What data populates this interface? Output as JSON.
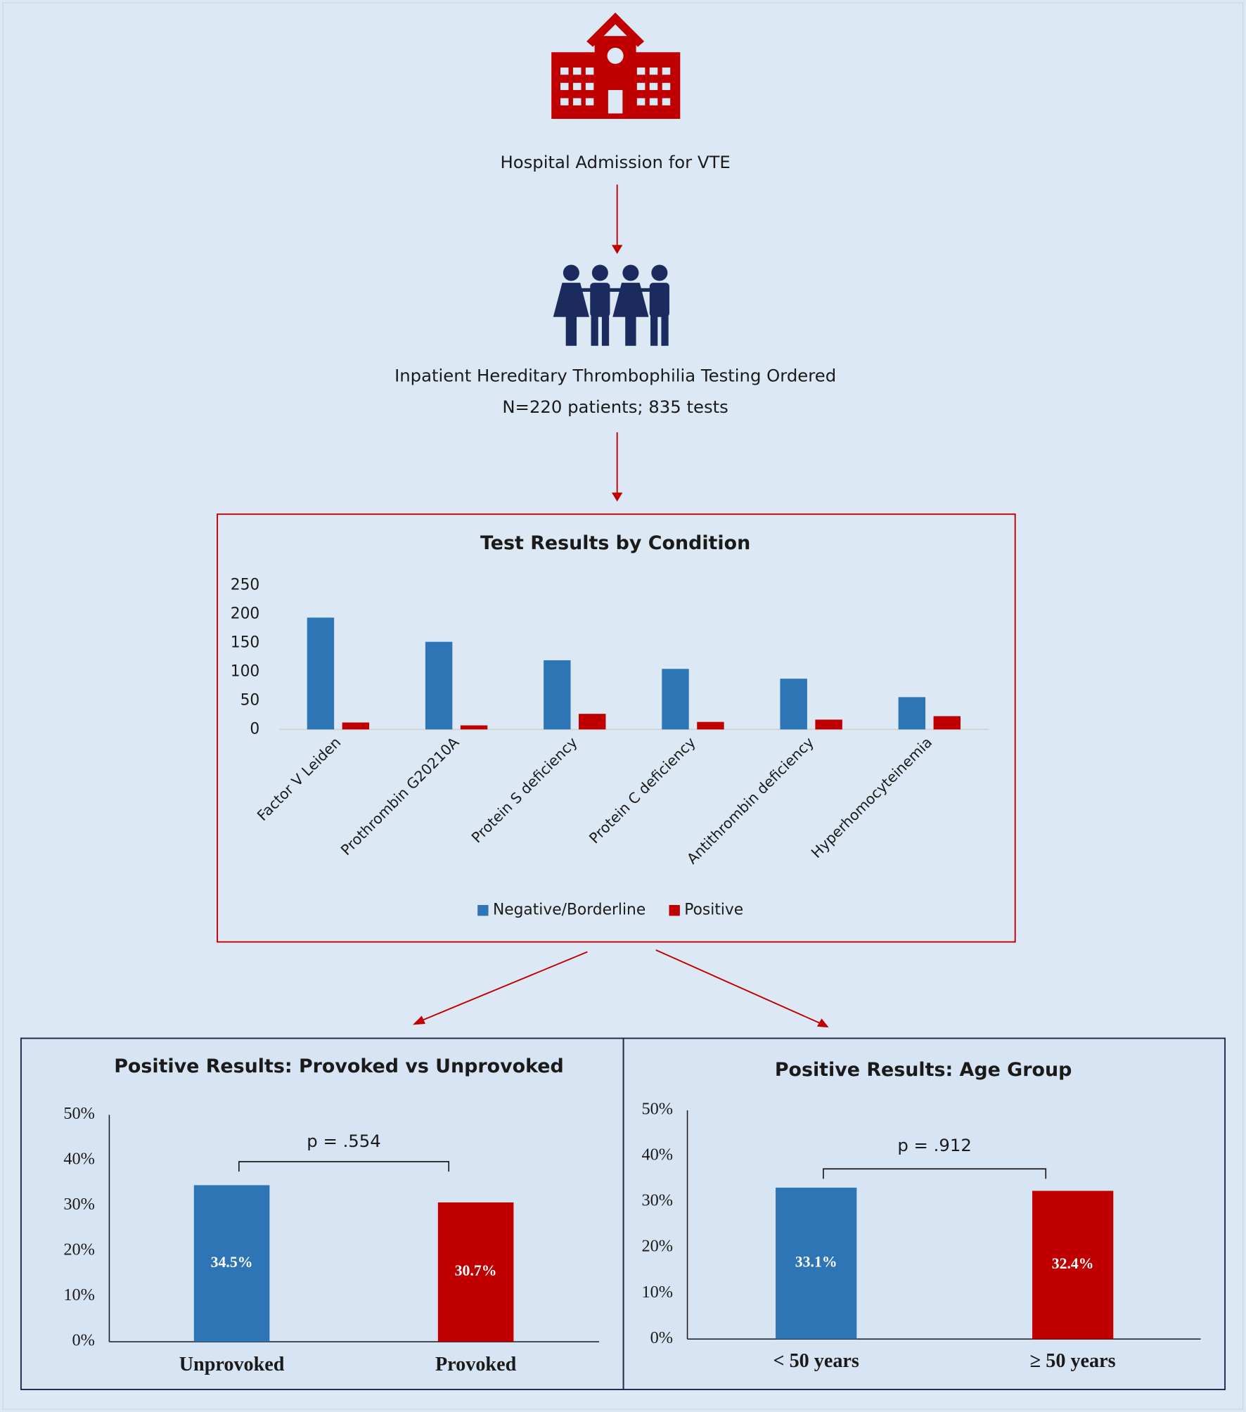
{
  "flow": {
    "admission": "Hospital Admission for VTE",
    "testing": "Inpatient Hereditary Thrombophilia Testing Ordered",
    "counts": "N=220 patients; 835 tests"
  },
  "chart_data": [
    {
      "type": "bar",
      "title": "Test Results by Condition",
      "categories": [
        "Factor V Leiden",
        "Prothrombin G20210A",
        "Protein S deficiency",
        "Protein C deficiency",
        "Antithrombin deficiency",
        "Hyperhomocyteinemia"
      ],
      "series": [
        {
          "name": "Negative/Borderline",
          "color": "#2e75b6",
          "values": [
            194,
            152,
            120,
            105,
            88,
            56
          ]
        },
        {
          "name": "Positive",
          "color": "#c00000",
          "values": [
            12,
            7,
            27,
            13,
            17,
            23
          ]
        }
      ],
      "ylim": [
        0,
        250
      ],
      "yticks": [
        0,
        50,
        100,
        150,
        200,
        250
      ],
      "grid": false,
      "legend": "bottom"
    },
    {
      "type": "bar",
      "title": "Positive Results: Provoked vs Unprovoked",
      "categories": [
        "Unprovoked",
        "Provoked"
      ],
      "values": [
        34.5,
        30.7
      ],
      "value_labels": [
        "34.5%",
        "30.7%"
      ],
      "colors": [
        "#2e75b6",
        "#c00000"
      ],
      "ylim": [
        0,
        50
      ],
      "yticks": [
        {
          "value": 0,
          "label": "0%"
        },
        {
          "value": 10,
          "label": "10%"
        },
        {
          "value": 20,
          "label": "20%"
        },
        {
          "value": 30,
          "label": "30%"
        },
        {
          "value": 40,
          "label": "40%"
        },
        {
          "value": 50,
          "label": "50%"
        }
      ],
      "annotation": "p = .554"
    },
    {
      "type": "bar",
      "title": "Positive Results: Age Group",
      "categories": [
        "< 50 years",
        "≥ 50 years"
      ],
      "values": [
        33.1,
        32.4
      ],
      "value_labels": [
        "33.1%",
        "32.4%"
      ],
      "colors": [
        "#2e75b6",
        "#c00000"
      ],
      "ylim": [
        0,
        50
      ],
      "yticks": [
        {
          "value": 0,
          "label": "0%"
        },
        {
          "value": 10,
          "label": "10%"
        },
        {
          "value": 20,
          "label": "20%"
        },
        {
          "value": 30,
          "label": "30%"
        },
        {
          "value": 40,
          "label": "40%"
        },
        {
          "value": 50,
          "label": "50%"
        }
      ],
      "annotation": "p = .912"
    }
  ]
}
